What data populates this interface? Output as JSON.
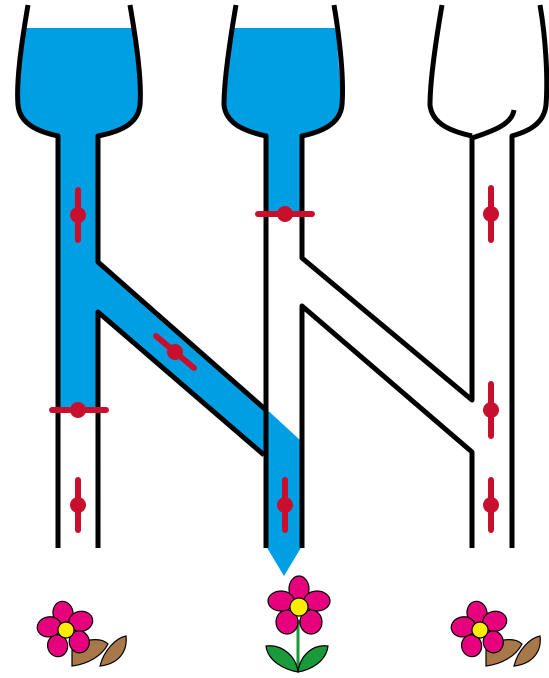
{
  "puzzle": {
    "colors": {
      "water": "#009fe3",
      "pipe_wall": "#000000",
      "valve": "#c8102e",
      "petal": "#e6007e",
      "flower_center": "#ffed00",
      "leaf_healthy": "#1a9a3a",
      "leaf_wilted": "#a9784a"
    },
    "funnels": [
      {
        "id": "left",
        "filled": true
      },
      {
        "id": "middle",
        "filled": true
      },
      {
        "id": "right",
        "filled": false
      }
    ],
    "valves": [
      {
        "id": "left-upper",
        "state": "open"
      },
      {
        "id": "middle-upper",
        "state": "closed"
      },
      {
        "id": "diagonal-left",
        "state": "open"
      },
      {
        "id": "left-lower",
        "state": "closed"
      },
      {
        "id": "left-bottom",
        "state": "open"
      },
      {
        "id": "middle-bottom",
        "state": "open"
      },
      {
        "id": "right-upper",
        "state": "open"
      },
      {
        "id": "right-middle",
        "state": "open"
      },
      {
        "id": "right-bottom",
        "state": "open"
      }
    ],
    "flowers": [
      {
        "id": "left",
        "state": "wilted"
      },
      {
        "id": "middle",
        "state": "healthy"
      },
      {
        "id": "right",
        "state": "wilted"
      }
    ]
  }
}
